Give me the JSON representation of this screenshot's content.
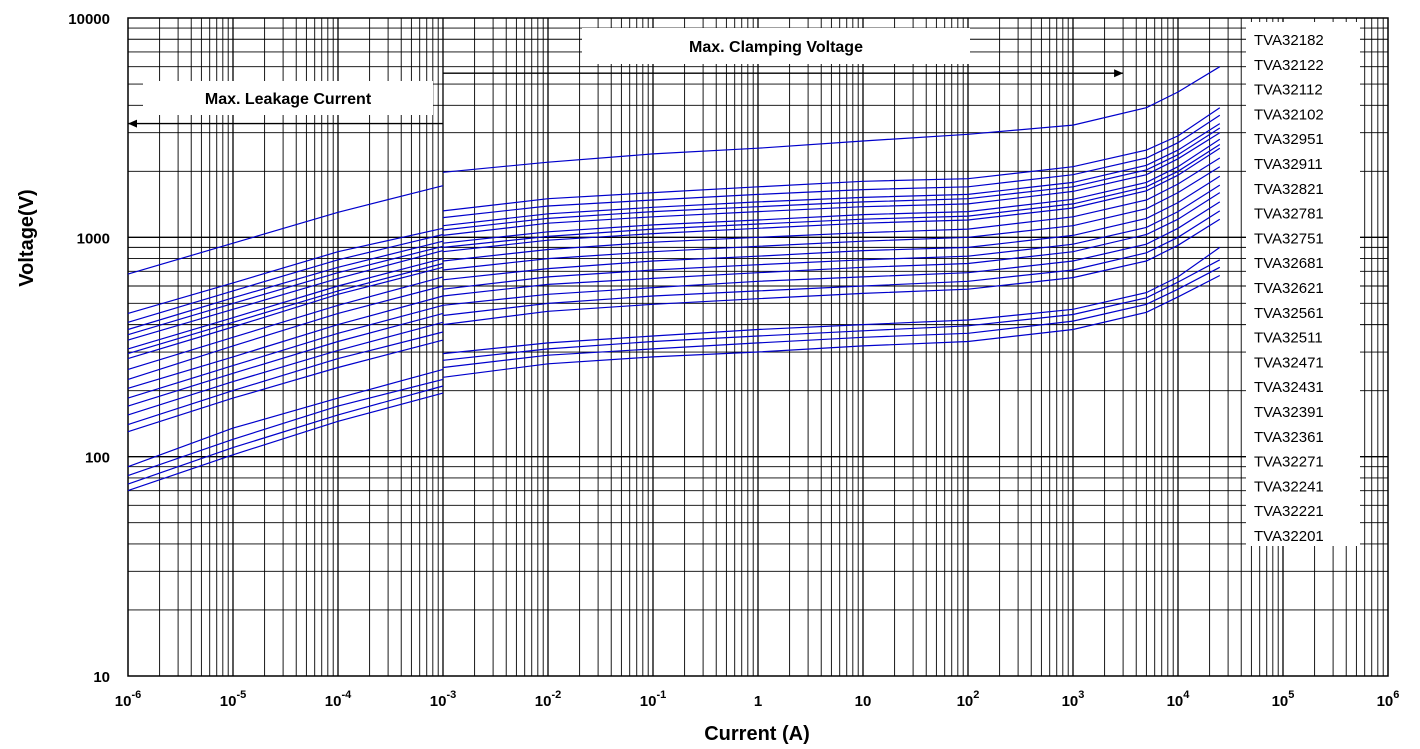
{
  "chart_data": {
    "type": "line",
    "title": "",
    "xlabel": "Current (A)",
    "ylabel": "Voltage(V)",
    "x_scale": "log",
    "y_scale": "log",
    "xlim": [
      1e-06,
      1000000
    ],
    "ylim": [
      10,
      10000
    ],
    "grid": true,
    "legend_position": "right",
    "line_color": "#0000cc",
    "x_ticks": [
      {
        "base": "10",
        "exp": "-6"
      },
      {
        "base": "10",
        "exp": "-5"
      },
      {
        "base": "10",
        "exp": "-4"
      },
      {
        "base": "10",
        "exp": "-3"
      },
      {
        "base": "10",
        "exp": "-2"
      },
      {
        "base": "10",
        "exp": "-1"
      },
      {
        "base": "1",
        "exp": ""
      },
      {
        "base": "10",
        "exp": ""
      },
      {
        "base": "10",
        "exp": "2"
      },
      {
        "base": "10",
        "exp": "3"
      },
      {
        "base": "10",
        "exp": "4"
      },
      {
        "base": "10",
        "exp": "5"
      },
      {
        "base": "10",
        "exp": "6"
      }
    ],
    "y_ticks": [
      "10",
      "100",
      "1000",
      "10000"
    ],
    "annotations": [
      {
        "text": "Max. Leakage Current",
        "arrow": "left",
        "x_range": [
          1e-06,
          0.001
        ],
        "y": 3300
      },
      {
        "text": "Max. Clamping Voltage",
        "arrow": "right",
        "x_range": [
          0.001,
          3000
        ],
        "y": 5600
      }
    ],
    "legend": [
      "TVA32182",
      "TVA32122",
      "TVA32112",
      "TVA32102",
      "TVA32951",
      "TVA32911",
      "TVA32821",
      "TVA32781",
      "TVA32751",
      "TVA32681",
      "TVA32621",
      "TVA32561",
      "TVA32511",
      "TVA32471",
      "TVA32431",
      "TVA32391",
      "TVA32361",
      "TVA32271",
      "TVA32241",
      "TVA32221",
      "TVA32201"
    ],
    "x": [
      1e-06,
      1e-05,
      0.0001,
      0.001,
      0.01,
      0.1,
      1,
      10,
      100,
      1000,
      5000,
      10000,
      25000
    ],
    "series": [
      {
        "name": "TVA32182",
        "leakage": [
          680,
          940,
          1300,
          1720
        ],
        "clamping": [
          1980,
          2200,
          2400,
          2550,
          2750,
          2950,
          3250,
          3900,
          4600,
          6000
        ]
      },
      {
        "name": "TVA32122",
        "leakage": [
          450,
          620,
          860,
          1100
        ],
        "clamping": [
          1320,
          1500,
          1600,
          1700,
          1800,
          1850,
          2100,
          2500,
          2900,
          3900
        ]
      },
      {
        "name": "TVA32112",
        "leakage": [
          410,
          570,
          790,
          1030
        ],
        "clamping": [
          1230,
          1390,
          1480,
          1570,
          1650,
          1700,
          1930,
          2300,
          2700,
          3600
        ]
      },
      {
        "name": "TVA32102",
        "leakage": [
          380,
          530,
          730,
          960
        ],
        "clamping": [
          1130,
          1280,
          1370,
          1450,
          1520,
          1570,
          1780,
          2130,
          2500,
          3300
        ]
      },
      {
        "name": "TVA32951",
        "leakage": [
          360,
          500,
          690,
          910
        ],
        "clamping": [
          1080,
          1220,
          1310,
          1380,
          1450,
          1500,
          1700,
          2030,
          2380,
          3150
        ]
      },
      {
        "name": "TVA32911",
        "leakage": [
          340,
          470,
          650,
          870
        ],
        "clamping": [
          1020,
          1160,
          1240,
          1310,
          1380,
          1420,
          1620,
          1930,
          2280,
          3000
        ]
      },
      {
        "name": "TVA32821",
        "leakage": [
          310,
          430,
          600,
          800
        ],
        "clamping": [
          940,
          1060,
          1140,
          1200,
          1270,
          1310,
          1490,
          1780,
          2100,
          2800
        ]
      },
      {
        "name": "TVA32781",
        "leakage": [
          295,
          410,
          570,
          760
        ],
        "clamping": [
          900,
          1010,
          1090,
          1150,
          1210,
          1250,
          1420,
          1700,
          2000,
          2650
        ]
      },
      {
        "name": "TVA32751",
        "leakage": [
          280,
          390,
          550,
          730
        ],
        "clamping": [
          860,
          970,
          1040,
          1100,
          1160,
          1200,
          1360,
          1630,
          1920,
          2550
        ]
      },
      {
        "name": "TVA32681",
        "leakage": [
          250,
          350,
          490,
          660
        ],
        "clamping": [
          780,
          880,
          950,
          1000,
          1050,
          1090,
          1240,
          1480,
          1750,
          2300
        ]
      },
      {
        "name": "TVA32621",
        "leakage": [
          225,
          320,
          450,
          600
        ],
        "clamping": [
          710,
          800,
          860,
          910,
          960,
          1000,
          1130,
          1350,
          1600,
          2100
        ]
      },
      {
        "name": "TVA32561",
        "leakage": [
          205,
          285,
          400,
          540
        ],
        "clamping": [
          640,
          720,
          780,
          820,
          870,
          900,
          1020,
          1220,
          1440,
          1900
        ]
      },
      {
        "name": "TVA32511",
        "leakage": [
          185,
          260,
          365,
          490
        ],
        "clamping": [
          580,
          660,
          710,
          750,
          790,
          820,
          930,
          1110,
          1310,
          1730
        ]
      },
      {
        "name": "TVA32471",
        "leakage": [
          170,
          240,
          335,
          450
        ],
        "clamping": [
          540,
          610,
          650,
          690,
          730,
          760,
          860,
          1030,
          1210,
          1600
        ]
      },
      {
        "name": "TVA32431",
        "leakage": [
          155,
          220,
          305,
          410
        ],
        "clamping": [
          490,
          550,
          590,
          630,
          660,
          690,
          780,
          930,
          1100,
          1450
        ]
      },
      {
        "name": "TVA32391",
        "leakage": [
          140,
          200,
          280,
          370
        ],
        "clamping": [
          440,
          500,
          540,
          570,
          600,
          630,
          710,
          850,
          1000,
          1320
        ]
      },
      {
        "name": "TVA32361",
        "leakage": [
          130,
          185,
          255,
          340
        ],
        "clamping": [
          400,
          460,
          495,
          525,
          555,
          580,
          655,
          780,
          920,
          1210
        ]
      },
      {
        "name": "TVA32271",
        "leakage": [
          90,
          135,
          185,
          250
        ],
        "clamping": [
          295,
          330,
          355,
          380,
          400,
          420,
          470,
          560,
          660,
          900
        ]
      },
      {
        "name": "TVA32241",
        "leakage": [
          82,
          120,
          170,
          225
        ],
        "clamping": [
          275,
          310,
          335,
          355,
          375,
          395,
          445,
          530,
          625,
          790
        ]
      },
      {
        "name": "TVA32221",
        "leakage": [
          75,
          110,
          155,
          210
        ],
        "clamping": [
          255,
          290,
          310,
          330,
          350,
          365,
          415,
          495,
          580,
          730
        ]
      },
      {
        "name": "TVA32201",
        "leakage": [
          70,
          102,
          145,
          195
        ],
        "clamping": [
          230,
          265,
          285,
          300,
          320,
          335,
          380,
          455,
          535,
          670
        ]
      }
    ]
  }
}
